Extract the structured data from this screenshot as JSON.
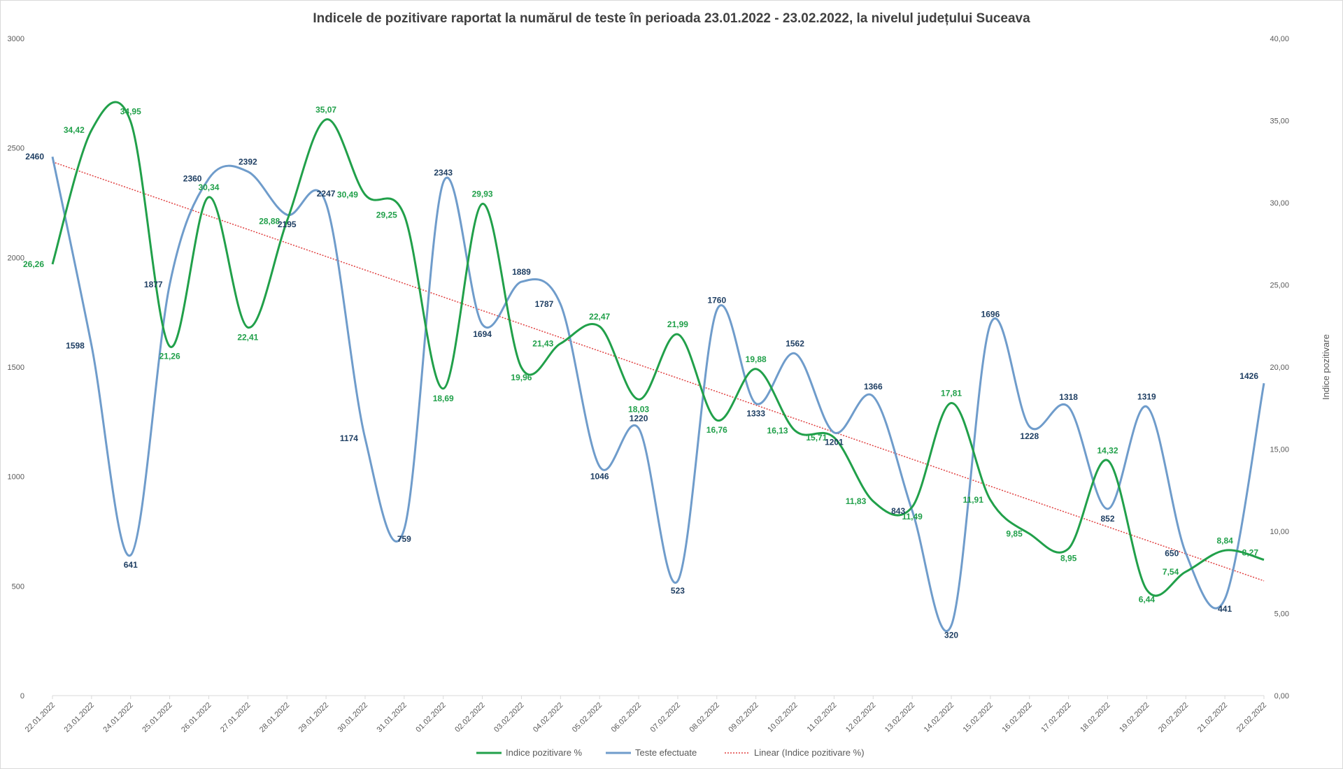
{
  "chart_data": {
    "type": "line",
    "title": "Indicele de pozitivare raportat la numărul de teste în perioada 23.01.2022 - 23.02.2022, la nivelul județului Suceava",
    "xlabel": "",
    "ylabel_left": "",
    "ylabel_right": "Indice pozitivare",
    "categories": [
      "22.01.2022",
      "23.01.2022",
      "24.01.2022",
      "25.01.2022",
      "26.01.2022",
      "27.01.2022",
      "28.01.2022",
      "29.01.2022",
      "30.01.2022",
      "31.01.2022",
      "01.02.2022",
      "02.02.2022",
      "03.02.2022",
      "04.02.2022",
      "05.02.2022",
      "06.02.2022",
      "07.02.2022",
      "08.02.2022",
      "09.02.2022",
      "10.02.2022",
      "11.02.2022",
      "12.02.2022",
      "13.02.2022",
      "14.02.2022",
      "15.02.2022",
      "16.02.2022",
      "17.02.2022",
      "18.02.2022",
      "19.02.2022",
      "20.02.2022",
      "21.02.2022",
      "22.02.2022"
    ],
    "y_left": {
      "min": 0,
      "max": 3000,
      "ticks": [
        {
          "v": 0,
          "t": "0"
        },
        {
          "v": 500,
          "t": "500"
        },
        {
          "v": 1000,
          "t": "1000"
        },
        {
          "v": 1500,
          "t": "1500"
        },
        {
          "v": 2000,
          "t": "2000"
        },
        {
          "v": 2500,
          "t": "2500"
        },
        {
          "v": 3000,
          "t": "3000"
        }
      ]
    },
    "y_right": {
      "min": 0,
      "max": 40,
      "ticks": [
        {
          "v": 0,
          "t": "0,00"
        },
        {
          "v": 5,
          "t": "5,00"
        },
        {
          "v": 10,
          "t": "10,00"
        },
        {
          "v": 15,
          "t": "15,00"
        },
        {
          "v": 20,
          "t": "20,00"
        },
        {
          "v": 25,
          "t": "25,00"
        },
        {
          "v": 30,
          "t": "30,00"
        },
        {
          "v": 35,
          "t": "35,00"
        },
        {
          "v": 40,
          "t": "40,00"
        }
      ]
    },
    "series": [
      {
        "name": "Indice pozitivare %",
        "axis": "right",
        "color": "#21a04a",
        "values": [
          26.26,
          34.42,
          34.95,
          21.26,
          30.34,
          22.41,
          28.88,
          35.07,
          30.49,
          29.25,
          18.69,
          29.93,
          19.96,
          21.43,
          22.47,
          18.03,
          21.99,
          16.76,
          19.88,
          16.13,
          15.71,
          11.83,
          11.49,
          17.81,
          11.91,
          9.85,
          8.95,
          14.32,
          6.44,
          7.54,
          8.84,
          8.27
        ],
        "labels": [
          "26,26",
          "34,42",
          "34,95",
          "21,26",
          "30,34",
          "22,41",
          "28,88",
          "35,07",
          "30,49",
          "29,25",
          "18,69",
          "29,93",
          "19,96",
          "21,43",
          "22,47",
          "18,03",
          "21,99",
          "16,76",
          "19,88",
          "16,13",
          "15,71",
          "11,83",
          "11,49",
          "17,81",
          "11,91",
          "9,85",
          "8,95",
          "14,32",
          "6,44",
          "7,54",
          "8,84",
          "8,27"
        ]
      },
      {
        "name": "Teste efectuate",
        "axis": "left",
        "color": "#6f9ccb",
        "values": [
          2460,
          1598,
          641,
          1877,
          2360,
          2392,
          2195,
          2247,
          1174,
          759,
          2343,
          1694,
          1889,
          1787,
          1046,
          1220,
          523,
          1760,
          1333,
          1562,
          1201,
          1366,
          843,
          320,
          1696,
          1228,
          1318,
          852,
          1319,
          650,
          441,
          1426
        ],
        "labels": [
          "2460",
          "1598",
          "641",
          "1877",
          "2360",
          "2392",
          "2195",
          "2247",
          "1174",
          "759",
          "2343",
          "1694",
          "1889",
          "1787",
          "1046",
          "1220",
          "523",
          "1760",
          "1333",
          "1562",
          "1201",
          "1366",
          "843",
          "320",
          "1696",
          "1228",
          "1318",
          "852",
          "1319",
          "650",
          "441",
          "1426"
        ]
      },
      {
        "name": "Linear (Indice pozitivare %)",
        "axis": "right",
        "color": "#e04040",
        "type": "trendline"
      }
    ],
    "legend_position": "bottom",
    "grid": false
  }
}
